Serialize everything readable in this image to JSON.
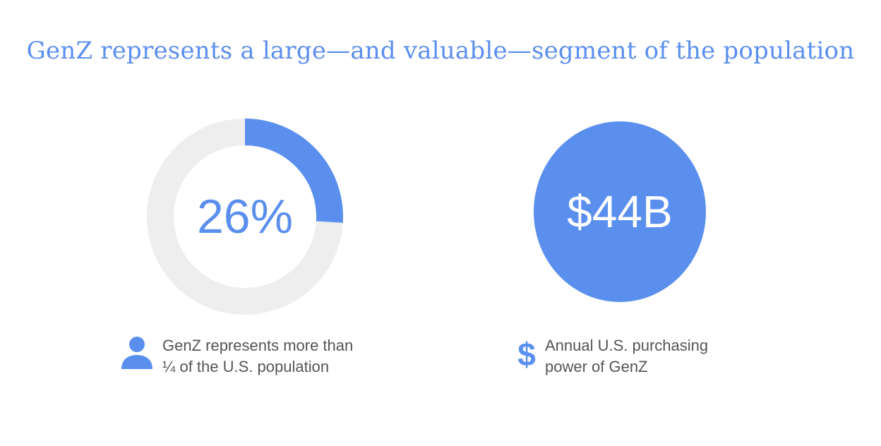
{
  "title": "GenZ represents a large—and valuable—segment of the population",
  "colors": {
    "accent": "#5b8fee",
    "track": "#eeeeee",
    "caption_text": "#555555"
  },
  "chart_data": [
    {
      "type": "pie",
      "style": "donut",
      "slices": [
        {
          "value": 26
        },
        {
          "value": 74
        }
      ],
      "center_label": "26%",
      "caption": {
        "icon": "person-icon",
        "lines": [
          "GenZ represents more than",
          "¼ of the U.S. population"
        ]
      }
    }
  ],
  "stat_circle": {
    "value": "$44B",
    "caption": {
      "icon": "dollar-icon",
      "lines": [
        "Annual U.S. purchasing",
        "power of GenZ"
      ]
    }
  }
}
